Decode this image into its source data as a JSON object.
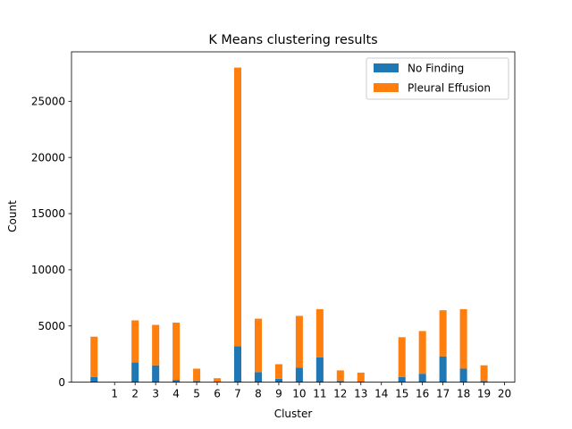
{
  "chart_data": {
    "type": "bar",
    "stacked": true,
    "title": "K Means clustering results",
    "xlabel": "Cluster",
    "ylabel": "Count",
    "x": [
      0,
      1,
      2,
      3,
      4,
      5,
      6,
      7,
      8,
      9,
      10,
      11,
      12,
      13,
      14,
      15,
      16,
      17,
      18,
      19
    ],
    "xticks": [
      "1",
      "2",
      "3",
      "4",
      "5",
      "6",
      "7",
      "8",
      "9",
      "10",
      "11",
      "12",
      "13",
      "14",
      "15",
      "16",
      "17",
      "18",
      "19",
      "20"
    ],
    "xtick_positions": [
      1,
      2,
      3,
      4,
      5,
      6,
      7,
      8,
      9,
      10,
      11,
      12,
      13,
      14,
      15,
      16,
      17,
      18,
      19,
      20
    ],
    "yticks": [
      "0",
      "5000",
      "10000",
      "15000",
      "20000",
      "25000"
    ],
    "ytick_values": [
      0,
      5000,
      10000,
      15000,
      20000,
      25000
    ],
    "ylim": [
      0,
      29400
    ],
    "xlim": [
      -1.1,
      20.5
    ],
    "series": [
      {
        "name": "No Finding",
        "color": "#1f77b4",
        "values": [
          450,
          0,
          1750,
          1500,
          200,
          100,
          0,
          3200,
          900,
          300,
          1300,
          2200,
          100,
          50,
          0,
          450,
          750,
          2300,
          1200,
          100
        ]
      },
      {
        "name": "Pleural Effusion",
        "color": "#ff7f0e",
        "values": [
          3600,
          0,
          3750,
          3600,
          5100,
          1100,
          350,
          24800,
          4750,
          1300,
          4600,
          4300,
          950,
          800,
          0,
          3550,
          3800,
          4100,
          5300,
          1400
        ]
      }
    ],
    "legend": {
      "position": "top-right",
      "entries": [
        "No Finding",
        "Pleural Effusion"
      ]
    },
    "grid": false
  }
}
